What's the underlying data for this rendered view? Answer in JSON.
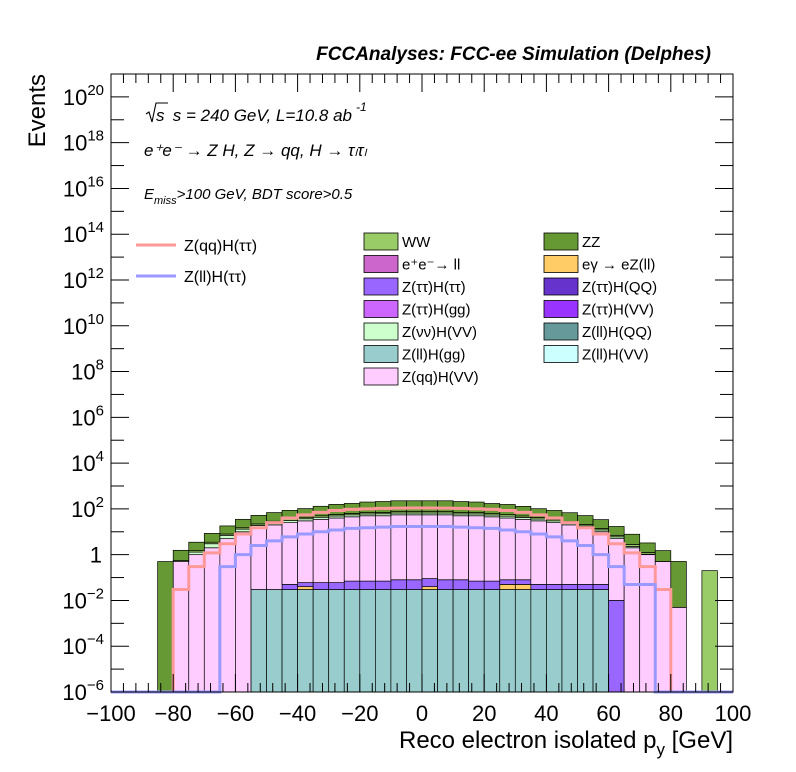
{
  "chart_data": {
    "type": "bar",
    "title": "FCCAnalyses: FCC-ee Simulation (Delphes)",
    "xlabel": "Reco electron isolated p",
    "xlabel_sub": "y",
    "xlabel_unit": "[GeV]",
    "ylabel": "Events",
    "xlim": [
      -100,
      100
    ],
    "ylim_log10": [
      -6,
      21
    ],
    "y_scale": "log",
    "x_ticks": [
      "−100",
      "−80",
      "−60",
      "−40",
      "−20",
      "0",
      "20",
      "40",
      "60",
      "80",
      "100"
    ],
    "y_ticks": [
      {
        "base": "10",
        "exp": "−6"
      },
      {
        "base": "10",
        "exp": "−4"
      },
      {
        "base": "10",
        "exp": "−2"
      },
      {
        "base": "1",
        "exp": ""
      },
      {
        "base": "10",
        "exp": "2"
      },
      {
        "base": "10",
        "exp": "4"
      },
      {
        "base": "10",
        "exp": "6"
      },
      {
        "base": "10",
        "exp": "8"
      },
      {
        "base": "10",
        "exp": "10"
      },
      {
        "base": "10",
        "exp": "12"
      },
      {
        "base": "10",
        "exp": "14"
      },
      {
        "base": "10",
        "exp": "16"
      },
      {
        "base": "10",
        "exp": "18"
      },
      {
        "base": "10",
        "exp": "20"
      }
    ],
    "annotations": {
      "line1": "s = 240 GeV, L=10.8 ab",
      "line1_sup": "-1",
      "line2": "e⁺e⁻ → Z H, Z → qq, H → τₗτₗ",
      "line3": ">100 GeV, BDT score>0.5",
      "line3_prefix": "E",
      "line3_sub": "miss"
    },
    "bin_width": 5,
    "bin_low_edges": [
      -100,
      -95,
      -90,
      -85,
      -80,
      -75,
      -70,
      -65,
      -60,
      -55,
      -50,
      -45,
      -40,
      -35,
      -30,
      -25,
      -20,
      -15,
      -10,
      -5,
      0,
      5,
      10,
      15,
      20,
      25,
      30,
      35,
      40,
      45,
      50,
      55,
      60,
      65,
      70,
      75,
      80,
      85,
      90,
      95
    ],
    "signal_lines": [
      {
        "name": "Z(qq)H(ττ)",
        "color": "#ff9999",
        "values": [
          1e-06,
          1e-06,
          1e-06,
          1e-06,
          0.03,
          0.3,
          1.2,
          3,
          8,
          15,
          25,
          40,
          55,
          70,
          85,
          95,
          100,
          105,
          108,
          110,
          110,
          108,
          105,
          100,
          95,
          85,
          70,
          55,
          40,
          25,
          15,
          8,
          3,
          1.2,
          0.3,
          0.03,
          1e-06,
          1e-06,
          1e-06,
          1e-06
        ]
      },
      {
        "name": "Z(ll)H(ττ)",
        "color": "#9999ff",
        "values": [
          1e-06,
          1e-06,
          1e-06,
          1e-06,
          1e-06,
          1e-06,
          1e-06,
          0.3,
          1,
          2.5,
          4,
          6,
          8,
          10,
          12,
          14,
          15,
          16,
          17,
          17,
          17,
          17,
          16,
          15,
          14,
          12,
          10,
          8,
          6,
          4,
          2.5,
          1,
          0.3,
          0.05,
          0.05,
          1e-06,
          1e-06,
          1e-06,
          1e-06,
          1e-06
        ]
      }
    ],
    "series": [
      {
        "name": "Z(ll)H(gg)",
        "color": "#99cccc",
        "values": [
          0,
          0,
          0,
          0,
          0,
          0,
          0,
          0,
          0,
          0.03,
          0.03,
          0.03,
          0.03,
          0.03,
          0.03,
          0.03,
          0.03,
          0.03,
          0.03,
          0.03,
          0.03,
          0.03,
          0.03,
          0.03,
          0.03,
          0.03,
          0.03,
          0.03,
          0.03,
          0.03,
          0.03,
          0.03,
          0,
          0,
          0,
          0,
          0,
          0,
          0,
          0
        ]
      },
      {
        "name": "eγ → eZ(ll)",
        "color": "#ffcc66",
        "values": [
          0,
          0,
          0,
          0,
          0,
          0,
          0,
          0,
          0,
          0,
          0,
          0,
          0.01,
          0,
          0,
          0,
          0,
          0,
          0,
          0,
          0.01,
          0,
          0,
          0,
          0,
          0.02,
          0.02,
          0,
          0,
          0,
          0,
          0,
          0,
          0,
          0,
          0,
          0,
          0,
          0,
          0
        ]
      },
      {
        "name": "Z(ττ)H(ττ)",
        "color": "#9966ff",
        "values": [
          0,
          0,
          0,
          0,
          0,
          0,
          0,
          0,
          0,
          0,
          0,
          0.02,
          0.02,
          0.03,
          0.03,
          0.04,
          0.04,
          0.04,
          0.05,
          0.05,
          0.05,
          0.05,
          0.05,
          0.04,
          0.04,
          0.03,
          0.03,
          0.02,
          0.02,
          0.02,
          0.02,
          0.02,
          0.01,
          0,
          0,
          0,
          0,
          0,
          0,
          0
        ]
      },
      {
        "name": "Z(qq)H(VV)",
        "color": "#ffccff",
        "values": [
          0,
          0,
          0,
          0,
          0.5,
          1,
          2,
          5,
          10,
          15,
          20,
          25,
          30,
          35,
          40,
          45,
          50,
          50,
          55,
          55,
          55,
          55,
          50,
          50,
          45,
          40,
          35,
          30,
          25,
          20,
          15,
          10,
          5,
          2,
          1,
          0.5,
          0.005,
          0,
          0,
          0
        ]
      },
      {
        "name": "Z(νν)H(VV)",
        "color": "#ccffcc",
        "values": [
          0,
          0,
          0,
          0,
          0.05,
          0.3,
          1,
          2,
          3,
          4,
          5,
          6,
          7,
          8,
          9,
          10,
          10,
          11,
          11,
          11,
          11,
          11,
          10,
          10,
          9,
          8,
          7,
          6,
          5,
          4,
          3,
          2,
          1,
          0.3,
          0.05,
          0.005,
          0,
          0,
          0,
          0
        ]
      },
      {
        "name": "WW",
        "color": "#99cc66",
        "values": [
          0,
          0,
          0,
          0,
          0,
          0.2,
          0.5,
          1,
          2,
          3,
          4,
          5,
          6,
          7,
          8,
          8,
          9,
          9,
          10,
          10,
          10,
          10,
          9,
          9,
          8,
          8,
          7,
          6,
          5,
          4,
          3,
          2,
          1,
          0.5,
          0.2,
          0,
          0,
          0,
          0.2,
          0
        ]
      },
      {
        "name": "ZZ",
        "color": "#669933",
        "values": [
          0,
          0,
          0,
          0.5,
          1,
          2,
          5,
          10,
          20,
          30,
          40,
          50,
          60,
          80,
          100,
          110,
          130,
          140,
          150,
          150,
          150,
          150,
          140,
          130,
          110,
          100,
          80,
          60,
          50,
          40,
          30,
          20,
          10,
          5,
          2,
          1,
          0.5,
          0,
          0,
          0
        ]
      }
    ],
    "legend_signal": [
      {
        "name": "Z(qq)H(ττ)",
        "color": "#ff9999"
      },
      {
        "name": "Z(ll)H(ττ)",
        "color": "#9999ff"
      }
    ],
    "legend": [
      {
        "name": "WW",
        "color": "#99cc66"
      },
      {
        "name": "ZZ",
        "color": "#669933"
      },
      {
        "name": "e⁺e⁻→ ll",
        "color": "#cc66cc"
      },
      {
        "name": "eγ → eZ(ll)",
        "color": "#ffcc66"
      },
      {
        "name": "Z(ττ)H(ττ)",
        "color": "#9966ff"
      },
      {
        "name": "Z(ττ)H(QQ)",
        "color": "#6633cc"
      },
      {
        "name": "Z(ττ)H(gg)",
        "color": "#cc66ff"
      },
      {
        "name": "Z(ττ)H(VV)",
        "color": "#9933ff"
      },
      {
        "name": "Z(νν)H(VV)",
        "color": "#ccffcc"
      },
      {
        "name": "Z(ll)H(QQ)",
        "color": "#669999"
      },
      {
        "name": "Z(ll)H(gg)",
        "color": "#99cccc"
      },
      {
        "name": "Z(ll)H(VV)",
        "color": "#ccffff"
      },
      {
        "name": "Z(qq)H(VV)",
        "color": "#ffccff"
      }
    ]
  }
}
